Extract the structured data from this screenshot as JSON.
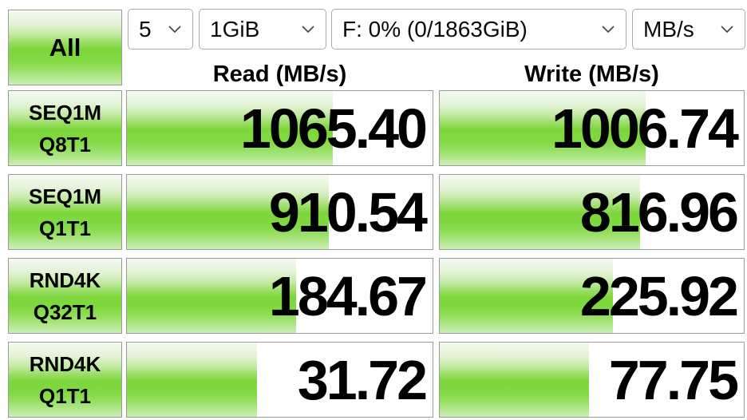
{
  "app_title": "Disk benchmark results panel",
  "toolbar": {
    "all_label": "All",
    "test_count": "5",
    "test_size": "1GiB",
    "target_drive": "F: 0% (0/1863GiB)",
    "unit": "MB/s"
  },
  "columns": {
    "read": "Read (MB/s)",
    "write": "Write (MB/s)"
  },
  "rows": [
    {
      "label1": "SEQ1M",
      "label2": "Q8T1",
      "read": "1065.40",
      "write": "1006.74",
      "read_fill": 67.3,
      "write_fill": 67.6
    },
    {
      "label1": "SEQ1M",
      "label2": "Q1T1",
      "read": "910.54",
      "write": "816.96",
      "read_fill": 66.0,
      "write_fill": 65.8
    },
    {
      "label1": "RND4K",
      "label2": "Q32T1",
      "read": "184.67",
      "write": "225.92",
      "read_fill": 55.3,
      "write_fill": 56.9
    },
    {
      "label1": "RND4K",
      "label2": "Q1T1",
      "read": "31.72",
      "write": "77.75",
      "read_fill": 42.6,
      "write_fill": 49.0
    }
  ],
  "colors": {
    "accent_green": "#7cd63b",
    "cell_border": "#9a9a9a",
    "dropdown_border": "#acacac",
    "text": "#000000",
    "background": "#ffffff"
  },
  "chart_data": {
    "type": "table",
    "title": "Disk sequential/random throughput",
    "unit": "MB/s",
    "categories": [
      "SEQ1M Q8T1",
      "SEQ1M Q1T1",
      "RND4K Q32T1",
      "RND4K Q1T1"
    ],
    "series": [
      {
        "name": "Read (MB/s)",
        "values": [
          1065.4,
          910.54,
          184.67,
          31.72
        ]
      },
      {
        "name": "Write (MB/s)",
        "values": [
          1006.74,
          816.96,
          225.92,
          77.75
        ]
      }
    ],
    "bar_fill_percent": {
      "read": [
        67.3,
        66.0,
        55.3,
        42.6
      ],
      "write": [
        67.6,
        65.8,
        56.9,
        49.0
      ]
    }
  }
}
